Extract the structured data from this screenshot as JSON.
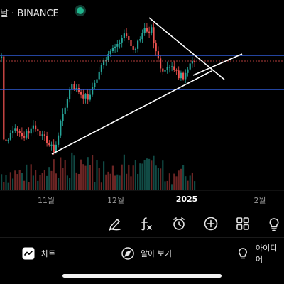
{
  "header": {
    "title": "날 · BINANCE",
    "status_color": "#1fb58d"
  },
  "xaxis": {
    "labels": [
      "11월",
      "12월",
      "2025",
      "2월"
    ]
  },
  "toolbar": {
    "icons": [
      "pen-icon",
      "fx-indicator-icon",
      "alarm-icon",
      "add-icon",
      "grid-icon",
      "idea-bulb-icon"
    ]
  },
  "bottom_nav": {
    "chart_label": "차트",
    "explore_label": "알아 보기",
    "ideas_label": "아이디어"
  },
  "colors": {
    "up": "#26a69a",
    "down": "#ef5350",
    "level_line": "#2f5bd3",
    "trend_line": "#ffffff"
  },
  "chart_data": {
    "type": "candlestick",
    "x_ticks": [
      "11월",
      "12월",
      "2025",
      "2월"
    ],
    "horizontal_levels": 2,
    "dashed_price_line": true,
    "trendlines": [
      "ascending support",
      "descending resistance",
      "extension"
    ]
  }
}
